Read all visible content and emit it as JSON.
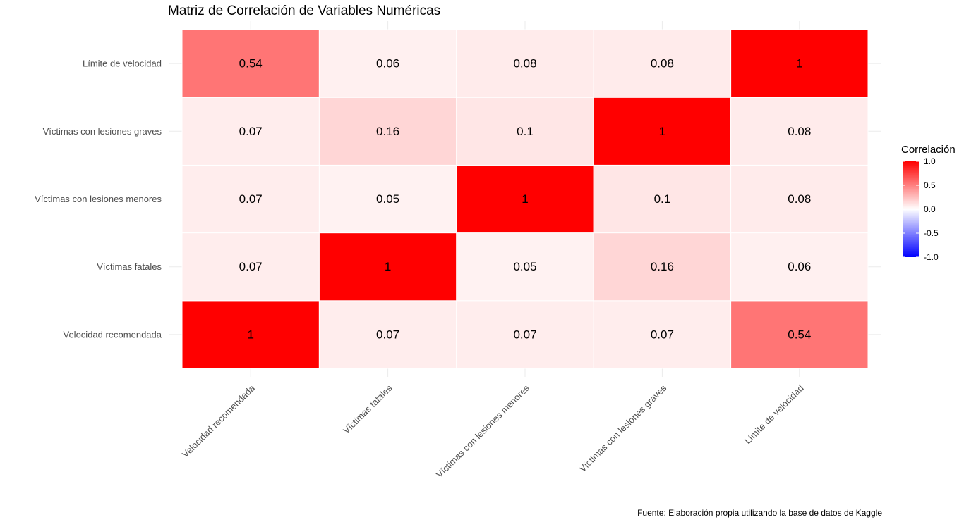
{
  "chart_data": {
    "type": "heatmap",
    "title": "Matriz de Correlación de Variables Numéricas",
    "caption": "Fuente: Elaboración propia utilizando la base de datos de Kaggle",
    "x_categories": [
      "Velocidad recomendada",
      "Víctimas fatales",
      "Víctimas con lesiones menores",
      "Víctimas con lesiones graves",
      "Límite de velocidad"
    ],
    "y_categories": [
      "Velocidad recomendada",
      "Víctimas fatales",
      "Víctimas con lesiones menores",
      "Víctimas con lesiones graves",
      "Límite de velocidad"
    ],
    "matrix": [
      [
        1,
        0.07,
        0.07,
        0.07,
        0.54
      ],
      [
        0.07,
        1,
        0.05,
        0.16,
        0.06
      ],
      [
        0.07,
        0.05,
        1,
        0.1,
        0.08
      ],
      [
        0.07,
        0.16,
        0.1,
        1,
        0.08
      ],
      [
        0.54,
        0.06,
        0.08,
        0.08,
        1
      ]
    ],
    "cell_labels": [
      [
        "1",
        "0.07",
        "0.07",
        "0.07",
        "0.54"
      ],
      [
        "0.07",
        "1",
        "0.05",
        "0.16",
        "0.06"
      ],
      [
        "0.07",
        "0.05",
        "1",
        "0.1",
        "0.08"
      ],
      [
        "0.07",
        "0.16",
        "0.1",
        "1",
        "0.08"
      ],
      [
        "0.54",
        "0.06",
        "0.08",
        "0.08",
        "1"
      ]
    ],
    "legend": {
      "title": "Correlación",
      "range": [
        -1,
        1
      ],
      "ticks": [
        1.0,
        0.5,
        0.0,
        -0.5,
        -1.0
      ],
      "tick_labels": [
        "1.0",
        "0.5",
        "0.0",
        "-0.5",
        "-1.0"
      ],
      "placement": "right"
    },
    "colors": {
      "low": "#0000ff",
      "mid": "#ffffff",
      "high": "#ff0000"
    },
    "grid": true
  }
}
